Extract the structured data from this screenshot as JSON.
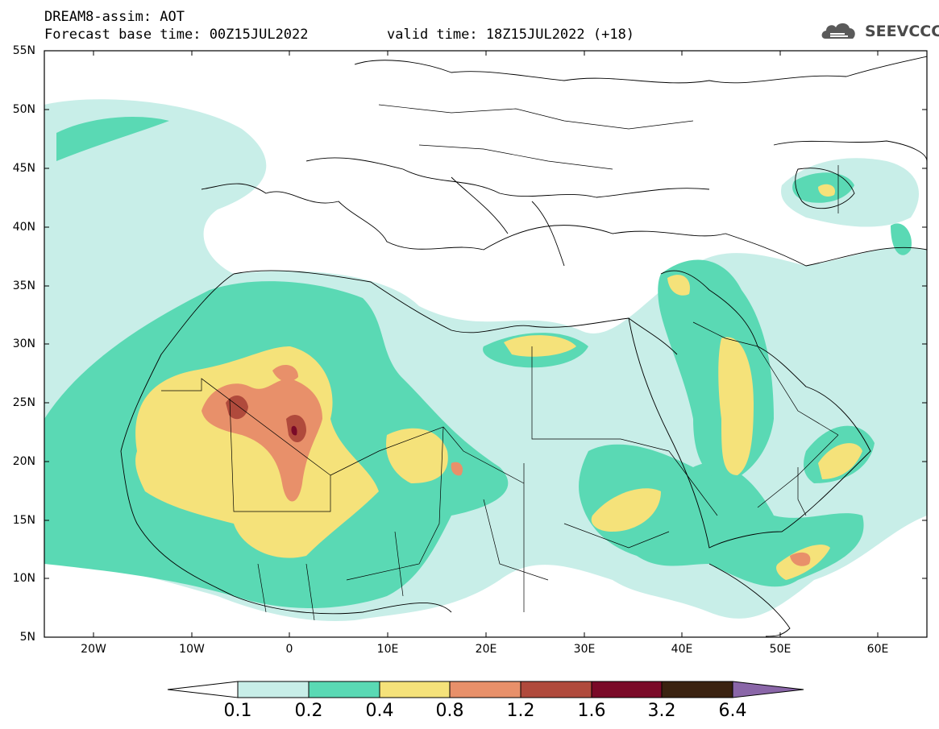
{
  "header": {
    "line1": "DREAM8-assim: AOT",
    "line2_left": "Forecast base time: 00Z15JUL2022",
    "line2_right": "valid time: 18Z15JUL2022 (+18)"
  },
  "logo": {
    "text": "SEEVCCC",
    "icon": "cloud-icon"
  },
  "map": {
    "variable": "AOT",
    "lon_range": [
      -25,
      65
    ],
    "lat_range": [
      5,
      55
    ],
    "lat_labels": [
      "55N",
      "50N",
      "45N",
      "40N",
      "35N",
      "30N",
      "25N",
      "20N",
      "15N",
      "10N",
      "5N"
    ],
    "lon_labels": [
      "20W",
      "10W",
      "0",
      "10E",
      "20E",
      "30E",
      "40E",
      "50E",
      "60E"
    ]
  },
  "colorbar": {
    "labels": [
      "0.1",
      "0.2",
      "0.4",
      "0.8",
      "1.2",
      "1.6",
      "3.2",
      "6.4"
    ],
    "colors": [
      "#ffffff",
      "#c8eee8",
      "#5ad9b4",
      "#f5e27a",
      "#e8906a",
      "#b04a3c",
      "#7a0a28",
      "#3a2210",
      "#8a66a8"
    ]
  }
}
